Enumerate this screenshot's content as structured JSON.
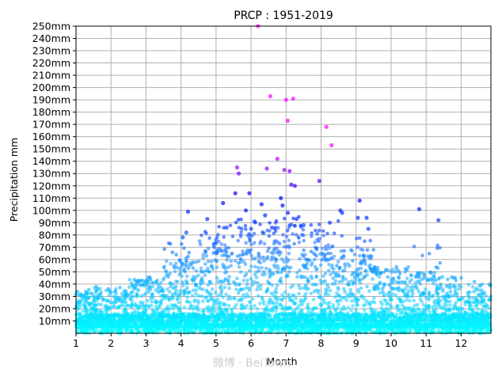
{
  "chart_data": {
    "type": "scatter",
    "title": "PRCP : 1951-2019",
    "xlabel": "Month",
    "ylabel": "Precipitation mm",
    "xlim": [
      1,
      12.85
    ],
    "ylim": [
      0,
      250
    ],
    "x_ticks": [
      1,
      2,
      3,
      4,
      5,
      6,
      7,
      8,
      9,
      10,
      11,
      12
    ],
    "x_tick_labels": [
      "1",
      "2",
      "3",
      "4",
      "5",
      "6",
      "7",
      "8",
      "9",
      "10",
      "11",
      "12"
    ],
    "y_ticks": [
      10,
      20,
      30,
      40,
      50,
      60,
      70,
      80,
      90,
      100,
      110,
      120,
      130,
      140,
      150,
      160,
      170,
      180,
      190,
      200,
      210,
      220,
      230,
      240,
      250
    ],
    "y_tick_labels": [
      "10mm",
      "20mm",
      "30mm",
      "40mm",
      "50mm",
      "60mm",
      "70mm",
      "80mm",
      "90mm",
      "100mm",
      "110mm",
      "120mm",
      "130mm",
      "140mm",
      "150mm",
      "160mm",
      "170mm",
      "180mm",
      "190mm",
      "200mm",
      "210mm",
      "220mm",
      "230mm",
      "240mm",
      "250mm"
    ],
    "grid": true,
    "colormap": [
      "#00ffff",
      "#1e90ff",
      "#0000ff",
      "#ff00ff"
    ],
    "highlighted_points": [
      {
        "x": 6.2,
        "y": 250
      },
      {
        "x": 6.55,
        "y": 193
      },
      {
        "x": 7.0,
        "y": 190
      },
      {
        "x": 7.2,
        "y": 191
      },
      {
        "x": 7.05,
        "y": 173
      },
      {
        "x": 8.15,
        "y": 168
      },
      {
        "x": 8.3,
        "y": 153
      },
      {
        "x": 6.75,
        "y": 142
      },
      {
        "x": 5.6,
        "y": 135
      },
      {
        "x": 6.95,
        "y": 133
      },
      {
        "x": 7.1,
        "y": 132
      },
      {
        "x": 6.45,
        "y": 134
      },
      {
        "x": 5.65,
        "y": 130
      },
      {
        "x": 7.15,
        "y": 121
      },
      {
        "x": 7.25,
        "y": 120
      },
      {
        "x": 7.95,
        "y": 124
      },
      {
        "x": 5.55,
        "y": 114
      },
      {
        "x": 5.95,
        "y": 114
      },
      {
        "x": 6.85,
        "y": 110
      },
      {
        "x": 9.1,
        "y": 108
      },
      {
        "x": 5.2,
        "y": 106
      },
      {
        "x": 6.3,
        "y": 105
      },
      {
        "x": 6.9,
        "y": 104
      },
      {
        "x": 10.8,
        "y": 101
      },
      {
        "x": 4.2,
        "y": 99
      },
      {
        "x": 5.85,
        "y": 100
      },
      {
        "x": 7.05,
        "y": 98
      },
      {
        "x": 8.55,
        "y": 100
      },
      {
        "x": 8.6,
        "y": 98
      },
      {
        "x": 6.4,
        "y": 96
      },
      {
        "x": 9.05,
        "y": 94
      },
      {
        "x": 9.3,
        "y": 94
      },
      {
        "x": 4.75,
        "y": 93
      },
      {
        "x": 11.35,
        "y": 92
      },
      {
        "x": 7.3,
        "y": 93
      },
      {
        "x": 6.1,
        "y": 91
      },
      {
        "x": 4.05,
        "y": 78
      },
      {
        "x": 4.15,
        "y": 82
      },
      {
        "x": 5.3,
        "y": 86
      },
      {
        "x": 9.35,
        "y": 85
      },
      {
        "x": 6.0,
        "y": 85
      },
      {
        "x": 6.6,
        "y": 86
      },
      {
        "x": 7.5,
        "y": 88
      },
      {
        "x": 8.25,
        "y": 90
      }
    ],
    "bulk_points_note": "",
    "bulk_density_by_month": {
      "1": {
        "typical_max": 30,
        "extreme_max": 48
      },
      "2": {
        "typical_max": 32,
        "extreme_max": 52
      },
      "3": {
        "typical_max": 40,
        "extreme_max": 62
      },
      "4": {
        "typical_max": 55,
        "extreme_max": 99
      },
      "5": {
        "typical_max": 70,
        "extreme_max": 135
      },
      "6": {
        "typical_max": 80,
        "extreme_max": 250
      },
      "7": {
        "typical_max": 85,
        "extreme_max": 193
      },
      "8": {
        "typical_max": 75,
        "extreme_max": 168
      },
      "9": {
        "typical_max": 65,
        "extreme_max": 108
      },
      "10": {
        "typical_max": 50,
        "extreme_max": 75
      },
      "11": {
        "typical_max": 45,
        "extreme_max": 101
      },
      "12": {
        "typical_max": 35,
        "extreme_max": 62
      }
    }
  },
  "watermark": "微博 · BeiTown"
}
